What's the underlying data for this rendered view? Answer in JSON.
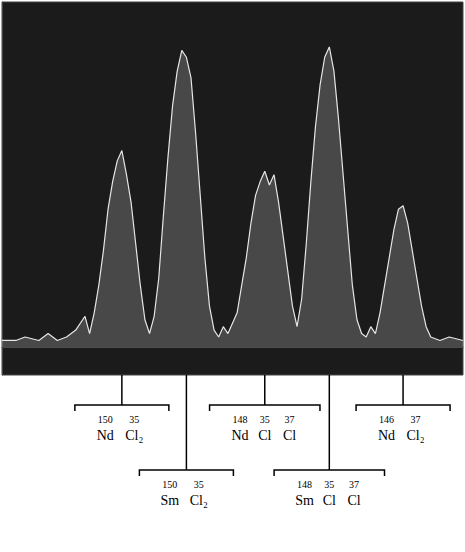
{
  "chart_data": {
    "type": "line",
    "x": [
      0,
      3,
      5,
      8,
      10,
      12,
      14,
      16,
      18,
      19,
      20,
      21,
      22,
      23,
      24,
      25,
      26,
      27,
      28,
      29,
      30,
      31,
      32,
      33,
      34,
      35,
      36,
      37,
      38,
      39,
      40,
      41,
      42,
      43,
      44,
      45,
      46,
      47,
      48,
      49,
      50,
      51,
      52,
      53,
      54,
      55,
      56,
      57,
      58,
      59,
      60,
      61,
      62,
      63,
      64,
      65,
      66,
      67,
      68,
      69,
      70,
      71,
      72,
      73,
      74,
      75,
      76,
      77,
      78,
      79,
      80,
      81,
      82,
      83,
      84,
      85,
      86,
      87,
      88,
      89,
      90,
      91,
      92,
      93,
      95,
      97,
      100
    ],
    "values": [
      2,
      2,
      3,
      2,
      4,
      2,
      3,
      5,
      9,
      4,
      10,
      18,
      28,
      40,
      48,
      54,
      57,
      50,
      42,
      30,
      18,
      8,
      4,
      9,
      20,
      38,
      55,
      70,
      80,
      86,
      84,
      78,
      62,
      44,
      26,
      12,
      5,
      3,
      6,
      4,
      7,
      10,
      18,
      26,
      36,
      44,
      48,
      51,
      47,
      50,
      42,
      32,
      22,
      12,
      6,
      14,
      30,
      48,
      64,
      76,
      84,
      87,
      80,
      66,
      50,
      34,
      18,
      8,
      4,
      3,
      6,
      4,
      10,
      18,
      26,
      34,
      40,
      41,
      36,
      28,
      20,
      12,
      6,
      3,
      2,
      3,
      2
    ],
    "color": "#e6e6e6",
    "xlim": [
      0,
      100
    ],
    "ylim": [
      -8,
      100
    ],
    "xticks": [],
    "yticks": [],
    "tick_labels": false,
    "grid": false,
    "annotations": [
      {
        "x": 26,
        "species": [
          {
            "mass": 150,
            "symbol": "Nd"
          },
          {
            "mass": 35,
            "symbol": "Cl₂"
          }
        ]
      },
      {
        "x": 40,
        "species": [
          {
            "mass": 150,
            "symbol": "Sm"
          },
          {
            "mass": 35,
            "symbol": "Cl₂"
          }
        ]
      },
      {
        "x": 57,
        "species": [
          {
            "mass": 148,
            "symbol": "Nd"
          },
          {
            "mass": 35,
            "symbol": "Cl"
          },
          {
            "mass": 37,
            "symbol": "Cl"
          }
        ]
      },
      {
        "x": 71,
        "species": [
          {
            "mass": 148,
            "symbol": "Sm"
          },
          {
            "mass": 35,
            "symbol": "Cl"
          },
          {
            "mass": 37,
            "symbol": "Cl"
          }
        ]
      },
      {
        "x": 87,
        "species": [
          {
            "mass": 146,
            "symbol": "Nd"
          },
          {
            "mass": 37,
            "symbol": "Cl₂"
          }
        ]
      }
    ]
  }
}
